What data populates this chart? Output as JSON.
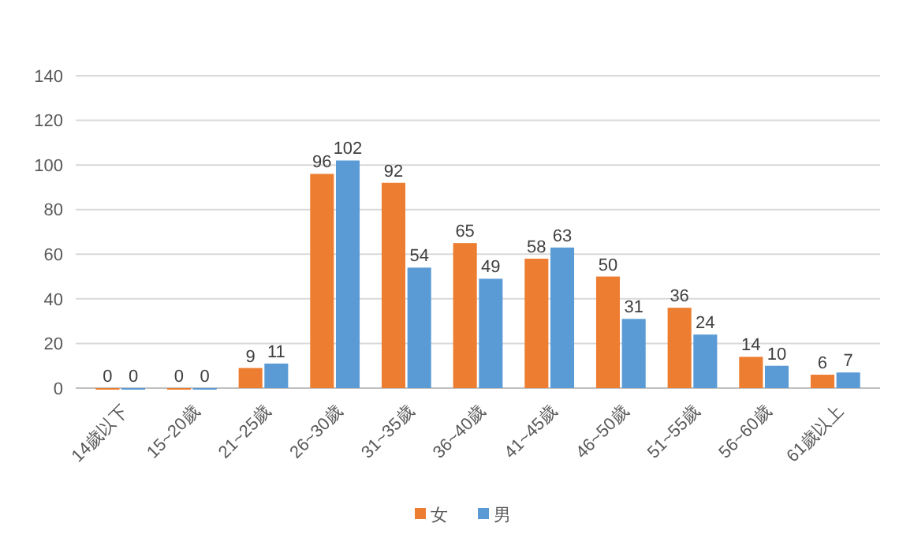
{
  "chart_data": {
    "type": "bar",
    "categories": [
      "14歲以下",
      "15~20歲",
      "21~25歲",
      "26~30歲",
      "31~35歲",
      "36~40歲",
      "41~45歲",
      "46~50歲",
      "51~55歲",
      "56~60歲",
      "61歲以上"
    ],
    "series": [
      {
        "name": "女",
        "color": "#ed7d31",
        "values": [
          0,
          0,
          9,
          96,
          92,
          65,
          58,
          50,
          36,
          14,
          6
        ]
      },
      {
        "name": "男",
        "color": "#5b9bd5",
        "values": [
          0,
          0,
          11,
          102,
          54,
          49,
          63,
          31,
          24,
          10,
          7
        ]
      }
    ],
    "ylim": [
      0,
      140
    ],
    "yticks": [
      0,
      20,
      40,
      60,
      80,
      100,
      120,
      140
    ],
    "grid": "y",
    "legend": "bottom",
    "data_labels": true
  }
}
